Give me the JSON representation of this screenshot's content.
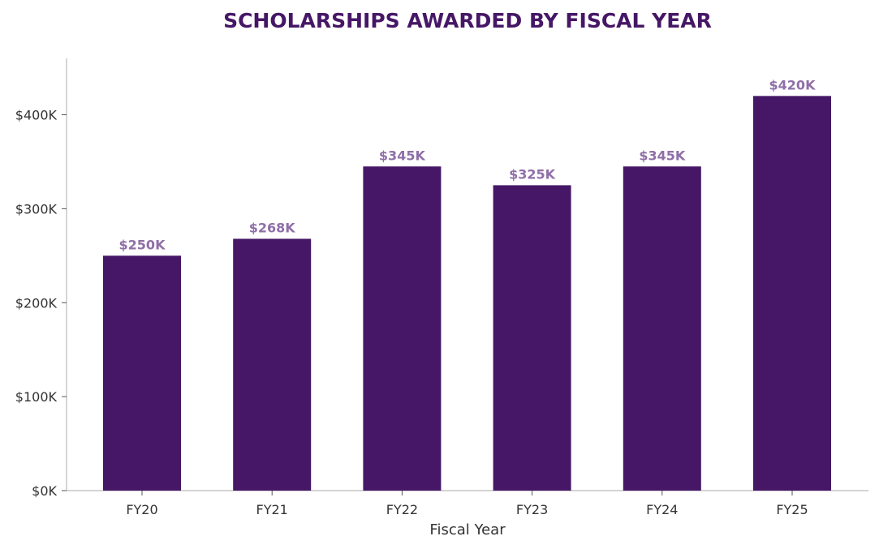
{
  "chart_data": {
    "type": "bar",
    "title": "SCHOLARSHIPS AWARDED BY FISCAL YEAR",
    "xlabel": "Fiscal Year",
    "ylabel": "",
    "categories": [
      "FY20",
      "FY21",
      "FY22",
      "FY23",
      "FY24",
      "FY25"
    ],
    "values": [
      250000,
      268000,
      345000,
      325000,
      345000,
      420000
    ],
    "data_labels": [
      "$250K",
      "$268K",
      "$345K",
      "$325K",
      "$345K",
      "$420K"
    ],
    "ylim": [
      0,
      460000
    ],
    "yticks": [
      0,
      100000,
      200000,
      300000,
      400000
    ],
    "ytick_labels": [
      "$0K",
      "$100K",
      "$200K",
      "$300K",
      "$400K"
    ],
    "grid": false,
    "legend": "none"
  },
  "colors": {
    "bar": "#461766",
    "title": "#461766",
    "data_label": "#8f6fa8",
    "axis": "#bbbbbb",
    "text": "#333333"
  }
}
